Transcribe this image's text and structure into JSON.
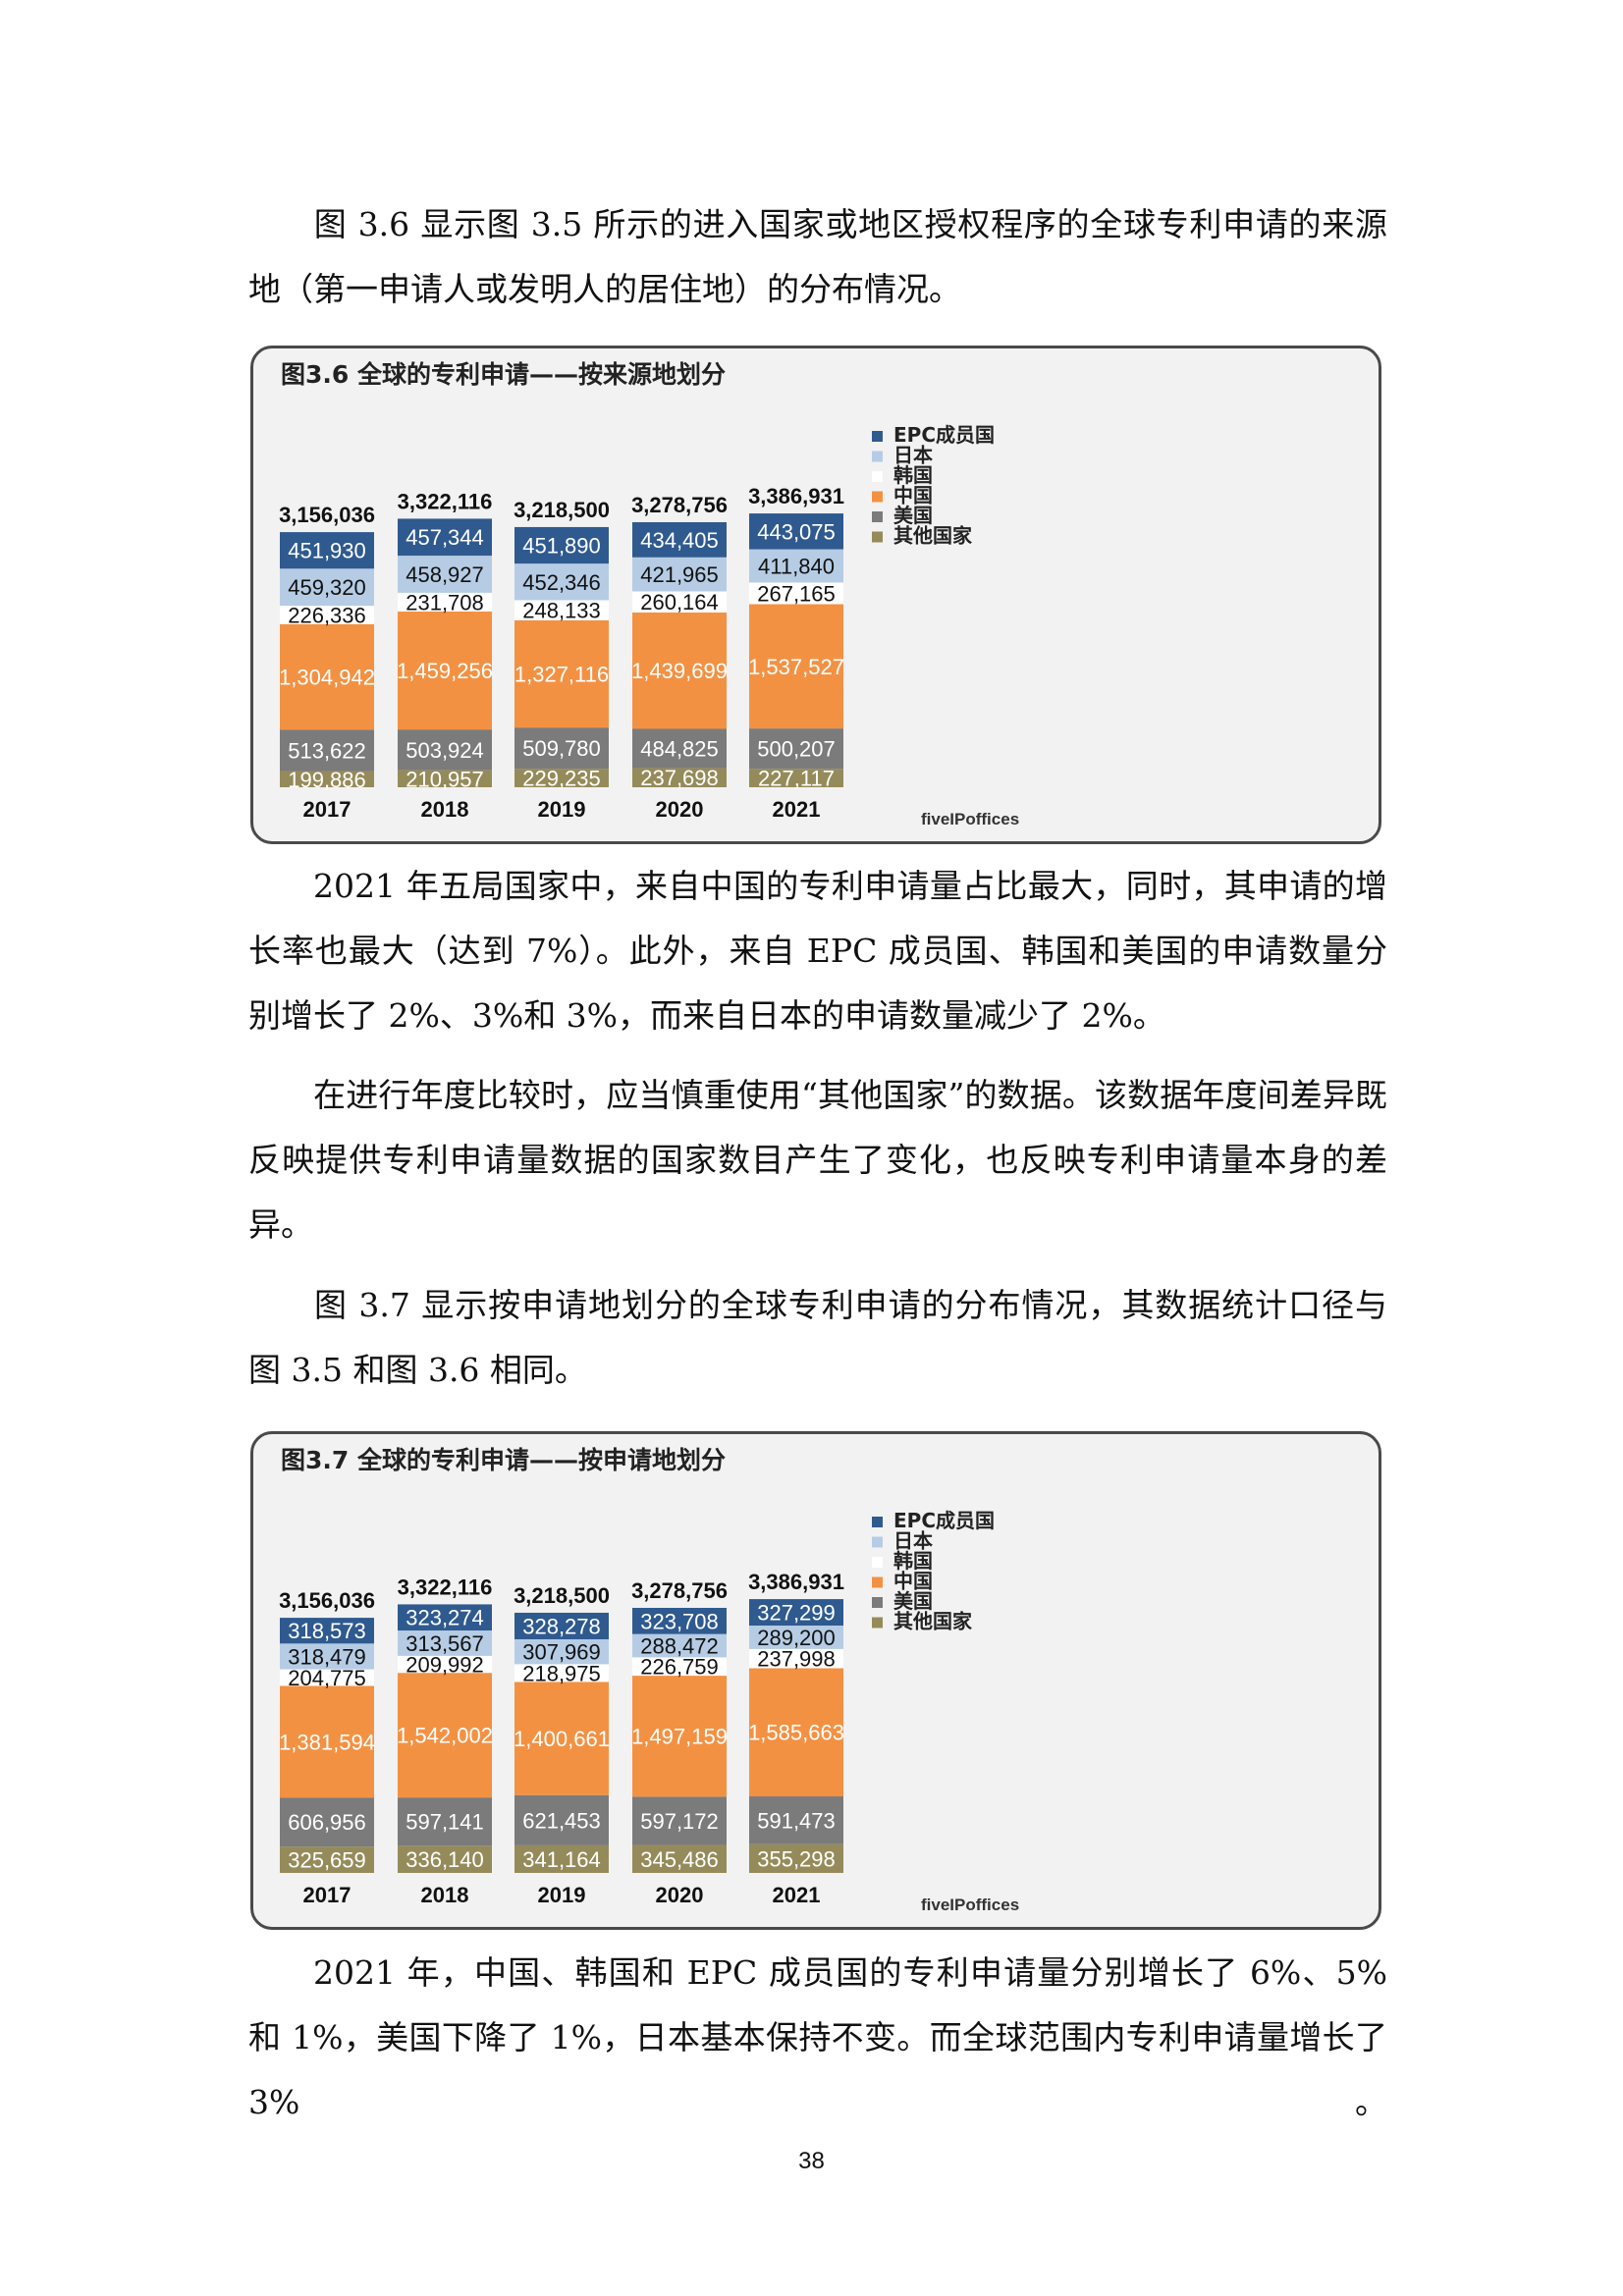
{
  "paragraphs": {
    "p1": "图 3.6 显示图 3.5 所示的进入国家或地区授权程序的全球专利申请的来源地（第一申请人或发明人的居住地）的分布情况。",
    "p2": "2021 年五局国家中，来自中国的专利申请量占比最大，同时，其申请的增长率也最大（达到 7%）。此外，来自 EPC 成员国、韩国和美国的申请数量分别增长了 2%、3%和 3%，而来自日本的申请数量减少了 2%。",
    "p3": "在进行年度比较时，应当慎重使用“其他国家”的数据。该数据年度间差异既反映提供专利申请量数据的国家数目产生了变化，也反映专利申请量本身的差异。",
    "p4": "图 3.7 显示按申请地划分的全球专利申请的分布情况，其数据统计口径与图 3.5 和图 3.6 相同。",
    "p5": "2021 年，中国、韩国和 EPC 成员国的专利申请量分别增长了 6%、5%和 1%，美国下降了 1%，日本基本保持不变。而全球范围内专利申请量增长了 3%",
    "p5_end": "。"
  },
  "page_number": "38",
  "logo": "fiveIPoffices",
  "colors": {
    "EPC成员国": "#2f5a8f",
    "日本": "#b5cce4",
    "韩国": "#ffffff",
    "中国": "#f39143",
    "美国": "#7b7b7b",
    "其他国家": "#958b5a"
  },
  "chart_data": [
    {
      "type": "bar",
      "stacked": true,
      "title": "图3.6 全球的专利申请——按来源地划分",
      "categories": [
        "2017",
        "2018",
        "2019",
        "2020",
        "2021"
      ],
      "totals": [
        "3,156,036",
        "3,322,116",
        "3,218,500",
        "3,278,756",
        "3,386,931"
      ],
      "legend_position": "right",
      "series": [
        {
          "name": "其他国家",
          "values": [
            199886,
            210957,
            229235,
            237698,
            227117
          ],
          "labels": [
            "199,886",
            "210,957",
            "229,235",
            "237,698",
            "227,117"
          ]
        },
        {
          "name": "美国",
          "values": [
            513622,
            503924,
            509780,
            484825,
            500207
          ],
          "labels": [
            "513,622",
            "503,924",
            "509,780",
            "484,825",
            "500,207"
          ]
        },
        {
          "name": "中国",
          "values": [
            1304942,
            1459256,
            1327116,
            1439699,
            1537527
          ],
          "labels": [
            "1,304,942",
            "1,459,256",
            "1,327,116",
            "1,439,699",
            "1,537,527"
          ]
        },
        {
          "name": "韩国",
          "values": [
            226336,
            231708,
            248133,
            260164,
            267165
          ],
          "labels": [
            "226,336",
            "231,708",
            "248,133",
            "260,164",
            "267,165"
          ]
        },
        {
          "name": "日本",
          "values": [
            459320,
            458927,
            452346,
            421965,
            411840
          ],
          "labels": [
            "459,320",
            "458,927",
            "452,346",
            "421,965",
            "411,840"
          ]
        },
        {
          "name": "EPC成员国",
          "values": [
            451930,
            457344,
            451890,
            434405,
            443075
          ],
          "labels": [
            "451,930",
            "457,344",
            "451,890",
            "434,405",
            "443,075"
          ]
        }
      ],
      "legend": [
        "EPC成员国",
        "日本",
        "韩国",
        "中国",
        "美国",
        "其他国家"
      ]
    },
    {
      "type": "bar",
      "stacked": true,
      "title": "图3.7 全球的专利申请——按申请地划分",
      "categories": [
        "2017",
        "2018",
        "2019",
        "2020",
        "2021"
      ],
      "totals": [
        "3,156,036",
        "3,322,116",
        "3,218,500",
        "3,278,756",
        "3,386,931"
      ],
      "legend_position": "right",
      "series": [
        {
          "name": "其他国家",
          "values": [
            325659,
            336140,
            341164,
            345486,
            355298
          ],
          "labels": [
            "325,659",
            "336,140",
            "341,164",
            "345,486",
            "355,298"
          ]
        },
        {
          "name": "美国",
          "values": [
            606956,
            597141,
            621453,
            597172,
            591473
          ],
          "labels": [
            "606,956",
            "597,141",
            "621,453",
            "597,172",
            "591,473"
          ]
        },
        {
          "name": "中国",
          "values": [
            1381594,
            1542002,
            1400661,
            1497159,
            1585663
          ],
          "labels": [
            "1,381,594",
            "1,542,002",
            "1,400,661",
            "1,497,159",
            "1,585,663"
          ]
        },
        {
          "name": "韩国",
          "values": [
            204775,
            209992,
            218975,
            226759,
            237998
          ],
          "labels": [
            "204,775",
            "209,992",
            "218,975",
            "226,759",
            "237,998"
          ]
        },
        {
          "name": "日本",
          "values": [
            318479,
            313567,
            307969,
            288472,
            289200
          ],
          "labels": [
            "318,479",
            "313,567",
            "307,969",
            "288,472",
            "289,200"
          ]
        },
        {
          "name": "EPC成员国",
          "values": [
            318573,
            323274,
            328278,
            323708,
            327299
          ],
          "labels": [
            "318,573",
            "323,274",
            "328,278",
            "323,708",
            "327,299"
          ]
        }
      ],
      "legend": [
        "EPC成员国",
        "日本",
        "韩国",
        "中国",
        "美国",
        "其他国家"
      ]
    }
  ]
}
